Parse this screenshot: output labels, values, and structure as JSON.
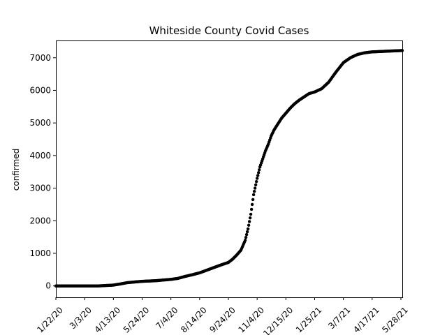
{
  "chart_data": {
    "type": "scatter",
    "title": "Whiteside County Covid Cases",
    "xlabel": "",
    "ylabel": "confirmed",
    "x_ticks": [
      "1/22/20",
      "3/3/20",
      "4/13/20",
      "5/24/20",
      "7/4/20",
      "8/14/20",
      "9/24/20",
      "11/4/20",
      "12/15/20",
      "1/25/21",
      "3/7/21",
      "4/17/21",
      "5/28/21"
    ],
    "y_ticks": [
      "0",
      "1000",
      "2000",
      "3000",
      "4000",
      "5000",
      "6000",
      "7000"
    ],
    "ylim": [
      -350,
      7530
    ],
    "xlim": [
      "1/22/20",
      "5/30/21"
    ],
    "grid": false,
    "legend": "none",
    "marker_color": "#000000",
    "series": [
      {
        "x": [
          "1/22/20",
          "2/11/20",
          "3/3/20",
          "3/23/20",
          "4/1/20",
          "4/13/20",
          "4/23/20",
          "5/3/20",
          "5/13/20",
          "5/24/20",
          "6/3/20",
          "6/13/20",
          "6/23/20",
          "7/4/20",
          "7/14/20",
          "7/24/20",
          "8/3/20",
          "8/14/20",
          "8/24/20",
          "9/3/20",
          "9/13/20",
          "9/24/20",
          "9/30/20",
          "10/6/20",
          "10/12/20",
          "10/18/20",
          "10/22/20",
          "10/26/20",
          "10/30/20",
          "11/4/20",
          "11/8/20",
          "11/12/20",
          "11/16/20",
          "11/20/20",
          "11/24/20",
          "11/28/20",
          "12/3/20",
          "12/9/20",
          "12/15/20",
          "12/21/20",
          "12/27/20",
          "1/3/21",
          "1/10/21",
          "1/17/21",
          "1/25/21",
          "2/4/21",
          "2/14/21",
          "2/24/21",
          "3/7/21",
          "3/17/21",
          "3/27/21",
          "4/6/21",
          "4/17/21",
          "4/27/21",
          "5/7/21",
          "5/17/21",
          "5/28/21",
          "5/30/21"
        ],
        "y": [
          0,
          0,
          0,
          0,
          10,
          25,
          60,
          100,
          120,
          140,
          150,
          160,
          180,
          200,
          230,
          290,
          340,
          400,
          480,
          560,
          640,
          720,
          820,
          950,
          1100,
          1400,
          1750,
          2200,
          2800,
          3300,
          3650,
          3900,
          4150,
          4350,
          4600,
          4780,
          4950,
          5150,
          5300,
          5450,
          5580,
          5700,
          5800,
          5900,
          5950,
          6050,
          6250,
          6550,
          6850,
          7000,
          7100,
          7150,
          7180,
          7190,
          7200,
          7210,
          7220,
          7220
        ]
      }
    ]
  }
}
